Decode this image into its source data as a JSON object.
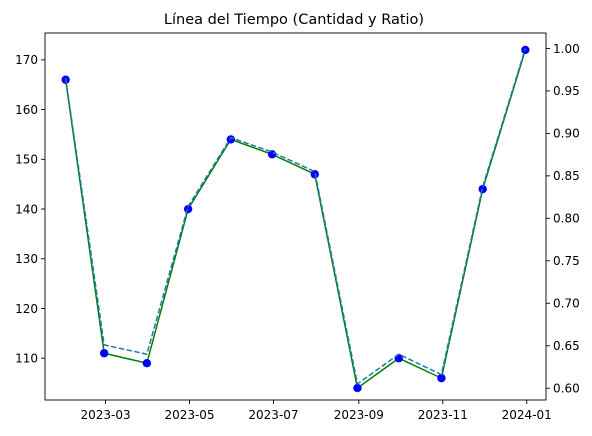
{
  "chart_data": {
    "type": "line",
    "title": "Línea del Tiempo (Cantidad y Ratio)",
    "xlabel": "",
    "ylabel": "",
    "ylabel_right": "",
    "grid": false,
    "legend": "none",
    "x": [
      "2023-01-31",
      "2023-02-28",
      "2023-03-31",
      "2023-04-30",
      "2023-05-31",
      "2023-06-30",
      "2023-07-31",
      "2023-08-31",
      "2023-09-30",
      "2023-10-31",
      "2023-11-30",
      "2023-12-31"
    ],
    "series": [
      {
        "axis": "left",
        "values": [
          166,
          111,
          109,
          140,
          154,
          151,
          147,
          104,
          110,
          106,
          144,
          172
        ],
        "line_color": "#008000",
        "line_style": "solid",
        "marker": "circle",
        "marker_color": "#0000ff"
      },
      {
        "axis": "right",
        "values": [
          0.965,
          0.651,
          0.64,
          0.814,
          0.895,
          0.878,
          0.855,
          0.605,
          0.64,
          0.616,
          0.837,
          1.0
        ],
        "line_color": "#1f77b4",
        "line_style": "dashed",
        "marker": "none"
      }
    ],
    "xlim": [
      "2023-01-16",
      "2024-01-15"
    ],
    "xticks": [
      "2023-03",
      "2023-05",
      "2023-07",
      "2023-09",
      "2023-11",
      "2024-01"
    ],
    "ylim": [
      101.6,
      175.4
    ],
    "yticks": [
      110,
      120,
      130,
      140,
      150,
      160,
      170
    ],
    "ylim_right": [
      0.5861,
      1.0182
    ],
    "yticks_right": [
      "0.60",
      "0.65",
      "0.70",
      "0.75",
      "0.80",
      "0.85",
      "0.90",
      "0.95",
      "1.00"
    ]
  }
}
